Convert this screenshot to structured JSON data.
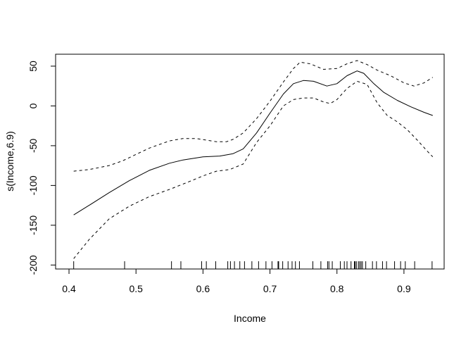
{
  "chart_data": {
    "type": "line",
    "title": "",
    "xlabel": "Income",
    "ylabel": "s(Income,6.9)",
    "xlim": [
      0.38,
      0.96
    ],
    "ylim": [
      -205,
      65
    ],
    "x_ticks": [
      0.4,
      0.5,
      0.6,
      0.7,
      0.8,
      0.9
    ],
    "x_tick_labels": [
      "0.4",
      "0.5",
      "0.6",
      "0.7",
      "0.8",
      "0.9"
    ],
    "y_ticks": [
      -200,
      -150,
      -100,
      -50,
      0,
      50
    ],
    "y_tick_labels": [
      "-200",
      "-150",
      "-100",
      "-50",
      "0",
      "50"
    ],
    "grid": false,
    "legend": "none",
    "series": [
      {
        "style": "solid",
        "x": [
          0.407,
          0.43,
          0.46,
          0.49,
          0.52,
          0.55,
          0.57,
          0.6,
          0.625,
          0.645,
          0.66,
          0.68,
          0.7,
          0.72,
          0.735,
          0.75,
          0.765,
          0.785,
          0.8,
          0.815,
          0.83,
          0.84,
          0.855,
          0.87,
          0.89,
          0.91,
          0.93,
          0.943
        ],
        "y": [
          -137,
          -125,
          -109,
          -94,
          -81,
          -72,
          -68,
          -64,
          -63,
          -60,
          -54,
          -34,
          -9,
          15,
          28,
          32,
          31,
          25,
          28,
          38,
          44,
          41,
          28,
          17,
          7,
          -1,
          -8,
          -12
        ]
      },
      {
        "style": "dashed",
        "x": [
          0.407,
          0.43,
          0.46,
          0.48,
          0.5,
          0.52,
          0.55,
          0.57,
          0.59,
          0.62,
          0.635,
          0.645,
          0.66,
          0.68,
          0.7,
          0.72,
          0.735,
          0.745,
          0.76,
          0.78,
          0.8,
          0.815,
          0.83,
          0.845,
          0.86,
          0.88,
          0.9,
          0.915,
          0.93,
          0.943
        ],
        "y": [
          -82,
          -80,
          -75,
          -69,
          -61,
          -53,
          -44,
          -41,
          -41,
          -45,
          -45,
          -42,
          -34,
          -16,
          6,
          30,
          47,
          55,
          53,
          46,
          47,
          53,
          57,
          52,
          45,
          38,
          29,
          25,
          29,
          36
        ]
      },
      {
        "style": "dashed",
        "x": [
          0.407,
          0.43,
          0.46,
          0.49,
          0.52,
          0.55,
          0.58,
          0.6,
          0.62,
          0.64,
          0.66,
          0.68,
          0.7,
          0.72,
          0.735,
          0.75,
          0.765,
          0.78,
          0.79,
          0.8,
          0.815,
          0.83,
          0.845,
          0.86,
          0.875,
          0.89,
          0.905,
          0.92,
          0.935,
          0.943
        ],
        "y": [
          -192,
          -168,
          -142,
          -126,
          -114,
          -105,
          -95,
          -88,
          -82,
          -80,
          -73,
          -46,
          -25,
          0,
          8,
          10,
          10,
          5,
          3,
          8,
          22,
          31,
          27,
          4,
          -12,
          -20,
          -30,
          -43,
          -57,
          -64
        ]
      }
    ],
    "rug": [
      0.407,
      0.483,
      0.553,
      0.567,
      0.598,
      0.605,
      0.619,
      0.637,
      0.641,
      0.647,
      0.655,
      0.662,
      0.673,
      0.683,
      0.694,
      0.703,
      0.712,
      0.713,
      0.719,
      0.727,
      0.733,
      0.738,
      0.744,
      0.764,
      0.776,
      0.786,
      0.788,
      0.793,
      0.805,
      0.811,
      0.815,
      0.821,
      0.826,
      0.827,
      0.829,
      0.832,
      0.834,
      0.836,
      0.838,
      0.843,
      0.853,
      0.859,
      0.868,
      0.874,
      0.886,
      0.895,
      0.902,
      0.916,
      0.942
    ]
  }
}
